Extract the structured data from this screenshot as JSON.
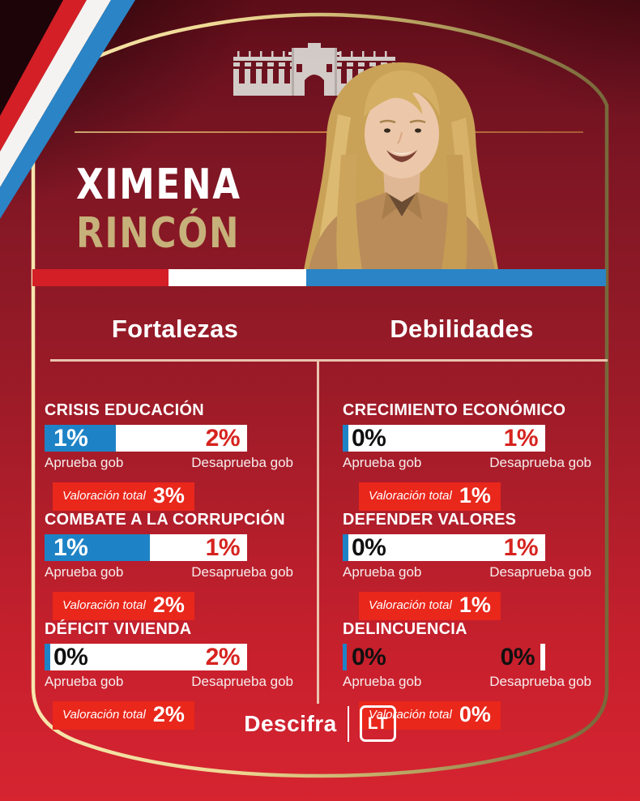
{
  "card": {
    "first_name": "XIMENA",
    "last_name": "RINCÓN"
  },
  "columns": [
    {
      "title": "Fortalezas",
      "items": [
        {
          "topic": "CRISIS EDUCACIÓN",
          "aprueba_value": "1%",
          "desaprueba_value": "2%",
          "aprueba_label": "Aprueba gob",
          "desaprueba_label": "Desaprueba gob",
          "total_label": "Valoración total",
          "total_value": "3%",
          "blue_pct": 35,
          "bar_style": "split"
        },
        {
          "topic": "COMBATE A LA CORRUPCIÓN",
          "aprueba_value": "1%",
          "desaprueba_value": "1%",
          "aprueba_label": "Aprueba gob",
          "desaprueba_label": "Desaprueba gob",
          "total_label": "Valoración total",
          "total_value": "2%",
          "blue_pct": 52,
          "bar_style": "split"
        },
        {
          "topic": "DÉFICIT VIVIENDA",
          "aprueba_value": "0%",
          "desaprueba_value": "2%",
          "aprueba_label": "Aprueba gob",
          "desaprueba_label": "Desaprueba gob",
          "total_label": "Valoración total",
          "total_value": "2%",
          "blue_pct": 3,
          "bar_style": "sliver"
        }
      ]
    },
    {
      "title": "Debilidades",
      "items": [
        {
          "topic": "CRECIMIENTO ECONÓMICO",
          "aprueba_value": "0%",
          "desaprueba_value": "1%",
          "aprueba_label": "Aprueba gob",
          "desaprueba_label": "Desaprueba gob",
          "total_label": "Valoración total",
          "total_value": "1%",
          "blue_pct": 3,
          "bar_style": "sliver"
        },
        {
          "topic": "DEFENDER VALORES",
          "aprueba_value": "0%",
          "desaprueba_value": "1%",
          "aprueba_label": "Aprueba gob",
          "desaprueba_label": "Desaprueba gob",
          "total_label": "Valoración total",
          "total_value": "1%",
          "blue_pct": 3,
          "bar_style": "sliver"
        },
        {
          "topic": "DELINCUENCIA",
          "aprueba_value": "0%",
          "desaprueba_value": "0%",
          "aprueba_label": "Aprueba gob",
          "desaprueba_label": "Desaprueba gob",
          "total_label": "Valoración total",
          "total_value": "0%",
          "blue_pct": 2,
          "bar_style": "empty"
        }
      ]
    }
  ],
  "footer": {
    "brand": "Descifra",
    "logo": "LT"
  },
  "icons": {
    "palace": "la-moneda-palace-icon",
    "ribbon": "chile-flag-ribbon",
    "portrait": "ximena-rincon-portrait"
  },
  "colors": {
    "approve_blue": "#1e83c6",
    "badge_red": "#e9271b",
    "value_red": "#d6231f",
    "gold_name": "#c7b17a",
    "divider_pink": "#eac3ae",
    "flag_red": "#d41f26",
    "flag_white": "#f5f3f1",
    "flag_blue": "#2a84c6",
    "border_gold": "#e8d494",
    "background_red": "#c51f2b"
  },
  "chart_data": [
    {
      "type": "bar",
      "title": "Fortalezas",
      "categories": [
        "CRISIS EDUCACIÓN",
        "COMBATE A LA CORRUPCIÓN",
        "DÉFICIT VIVIENDA"
      ],
      "series": [
        {
          "name": "Aprueba gob",
          "values": [
            1,
            1,
            0
          ]
        },
        {
          "name": "Desaprueba gob",
          "values": [
            2,
            1,
            2
          ]
        },
        {
          "name": "Valoración total",
          "values": [
            3,
            2,
            2
          ]
        }
      ],
      "unit": "%",
      "legend_position": "below-bars",
      "grid": false
    },
    {
      "type": "bar",
      "title": "Debilidades",
      "categories": [
        "CRECIMIENTO ECONÓMICO",
        "DEFENDER VALORES",
        "DELINCUENCIA"
      ],
      "series": [
        {
          "name": "Aprueba gob",
          "values": [
            0,
            0,
            0
          ]
        },
        {
          "name": "Desaprueba gob",
          "values": [
            1,
            1,
            0
          ]
        },
        {
          "name": "Valoración total",
          "values": [
            1,
            1,
            0
          ]
        }
      ],
      "unit": "%",
      "legend_position": "below-bars",
      "grid": false
    }
  ]
}
